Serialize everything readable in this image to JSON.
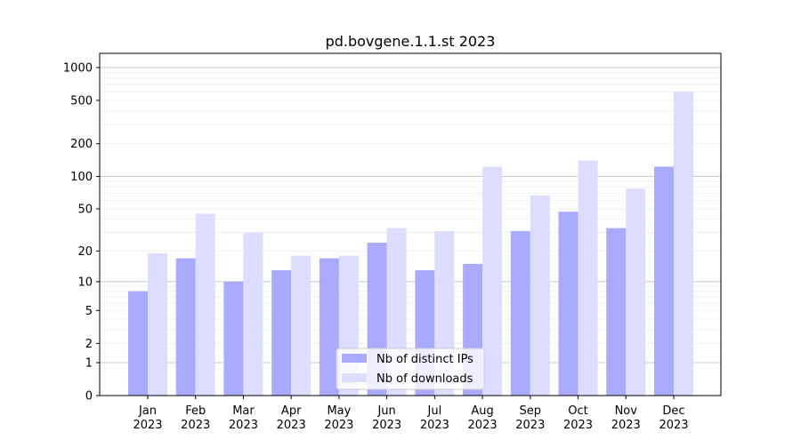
{
  "chart_data": {
    "type": "bar",
    "title": "pd.bovgene.1.1.st 2023",
    "xlabel": "",
    "ylabel": "",
    "yscale": "symlog (log10(1+y))",
    "ylim": [
      0,
      1200
    ],
    "yticks": [
      0,
      1,
      2,
      5,
      10,
      20,
      50,
      100,
      200,
      500,
      1000
    ],
    "grid": true,
    "legend_position": "bottom-center",
    "categories": [
      [
        "Jan",
        "2023"
      ],
      [
        "Feb",
        "2023"
      ],
      [
        "Mar",
        "2023"
      ],
      [
        "Apr",
        "2023"
      ],
      [
        "May",
        "2023"
      ],
      [
        "Jun",
        "2023"
      ],
      [
        "Jul",
        "2023"
      ],
      [
        "Aug",
        "2023"
      ],
      [
        "Sep",
        "2023"
      ],
      [
        "Oct",
        "2023"
      ],
      [
        "Nov",
        "2023"
      ],
      [
        "Dec",
        "2023"
      ]
    ],
    "series": [
      {
        "name": "Nb of distinct IPs",
        "color": "#aaaaff",
        "values": [
          8,
          17,
          10,
          13,
          17,
          24,
          13,
          15,
          31,
          47,
          33,
          123
        ]
      },
      {
        "name": "Nb of downloads",
        "color": "#ddddff",
        "values": [
          19,
          45,
          30,
          18,
          18,
          33,
          31,
          123,
          67,
          140,
          77,
          600
        ]
      }
    ]
  }
}
